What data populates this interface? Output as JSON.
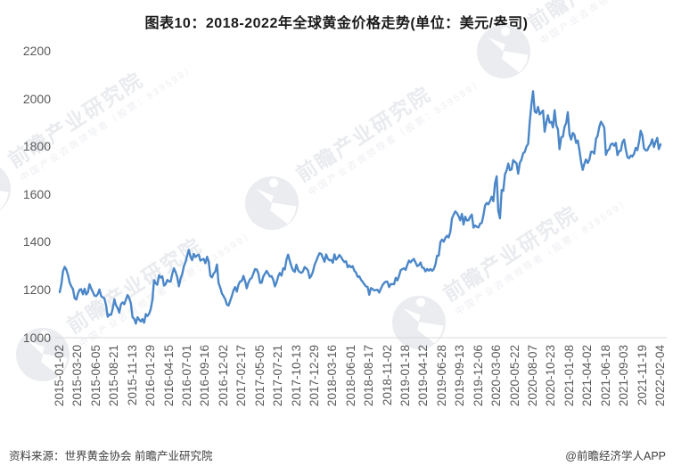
{
  "title": "图表10：2018-2022年全球黄金价格走势(单位：美元/盎司)",
  "footer": {
    "source": "资料来源：世界黄金协会 前瞻产业研究院",
    "credit": "@前瞻经济学人APP"
  },
  "watermark": {
    "main": "前瞻产业研究院",
    "sub": "中国产业咨询领导者（股票：839599）"
  },
  "colors": {
    "line": "#4b87c8",
    "axis_label": "#595959",
    "axis_line": "#d9d9d9",
    "title": "#1a1a1a",
    "footer_text": "#404040",
    "watermark": "#eaecef"
  },
  "chart_data": {
    "type": "line",
    "title": "图表10：2018-2022年全球黄金价格走势(单位：美元/盎司)",
    "series_name": "全球黄金价格（美元/盎司）",
    "unit": "美元/盎司",
    "grid": false,
    "legend": false,
    "ylim": [
      1000,
      2200
    ],
    "y_ticks": [
      1000,
      1200,
      1400,
      1600,
      1800,
      2000,
      2200
    ],
    "x_tick_every": 11,
    "x_tick_labels": [
      "2015-01-02",
      "2015-03-20",
      "2015-06-05",
      "2015-08-21",
      "2015-11-13",
      "2016-01-29",
      "2016-04-15",
      "2016-07-01",
      "2016-09-16",
      "2016-12-02",
      "2017-02-17",
      "2017-05-05",
      "2017-07-21",
      "2017-10-13",
      "2017-12-29",
      "2018-03-16",
      "2018-06-01",
      "2018-08-17",
      "2018-11-02",
      "2019-01-18",
      "2019-04-12",
      "2019-06-28",
      "2019-09-13",
      "2019-12-06",
      "2020-03-06",
      "2020-05-22",
      "2020-08-07",
      "2020-10-23",
      "2021-01-08",
      "2021-04-02",
      "2021-06-18",
      "2021-09-03",
      "2021-11-19",
      "2022-02-04"
    ],
    "values": [
      1189,
      1223,
      1277,
      1295,
      1283,
      1260,
      1229,
      1213,
      1201,
      1164,
      1158,
      1182,
      1199,
      1201,
      1180,
      1203,
      1179,
      1188,
      1222,
      1204,
      1190,
      1174,
      1172,
      1181,
      1200,
      1173,
      1167,
      1163,
      1134,
      1086,
      1095,
      1094,
      1118,
      1159,
      1134,
      1122,
      1103,
      1139,
      1146,
      1138,
      1158,
      1177,
      1164,
      1142,
      1084,
      1077,
      1057,
      1084,
      1074,
      1066,
      1076,
      1061,
      1097,
      1089,
      1098,
      1118,
      1157,
      1239,
      1226,
      1220,
      1259,
      1250,
      1255,
      1216,
      1222,
      1240,
      1234,
      1233,
      1266,
      1289,
      1273,
      1252,
      1213,
      1244,
      1264,
      1298,
      1315,
      1341,
      1366,
      1337,
      1323,
      1349,
      1336,
      1343,
      1346,
      1321,
      1325,
      1328,
      1310,
      1337,
      1317,
      1257,
      1251,
      1267,
      1275,
      1305,
      1227,
      1208,
      1183,
      1172,
      1159,
      1137,
      1133,
      1152,
      1173,
      1197,
      1210,
      1191,
      1220,
      1234,
      1235,
      1257,
      1235,
      1205,
      1229,
      1243,
      1249,
      1266,
      1285,
      1284,
      1268,
      1228,
      1228,
      1255,
      1266,
      1278,
      1266,
      1254,
      1256,
      1241,
      1213,
      1229,
      1255,
      1269,
      1258,
      1289,
      1284,
      1325,
      1346,
      1320,
      1297,
      1280,
      1274,
      1304,
      1281,
      1273,
      1270,
      1276,
      1294,
      1288,
      1280,
      1248,
      1257,
      1275,
      1303,
      1320,
      1338,
      1352,
      1349,
      1333,
      1316,
      1347,
      1329,
      1322,
      1324,
      1312,
      1347,
      1325,
      1333,
      1345,
      1336,
      1324,
      1315,
      1318,
      1293,
      1301,
      1293,
      1298,
      1279,
      1271,
      1253,
      1255,
      1241,
      1232,
      1223,
      1213,
      1211,
      1178,
      1206,
      1202,
      1196,
      1198,
      1199,
      1187,
      1203,
      1218,
      1227,
      1233,
      1233,
      1210,
      1222,
      1223,
      1222,
      1249,
      1238,
      1256,
      1281,
      1285,
      1289,
      1282,
      1303,
      1321,
      1314,
      1322,
      1328,
      1313,
      1298,
      1302,
      1313,
      1292,
      1290,
      1276,
      1286,
      1279,
      1286,
      1278,
      1285,
      1305,
      1341,
      1342,
      1399,
      1409,
      1400,
      1416,
      1425,
      1418,
      1441,
      1497,
      1514,
      1527,
      1520,
      1507,
      1490,
      1517,
      1472,
      1505,
      1489,
      1490,
      1505,
      1514,
      1459,
      1468,
      1463,
      1460,
      1476,
      1479,
      1511,
      1552,
      1562,
      1557,
      1571,
      1589,
      1570,
      1644,
      1674,
      1529,
      1498,
      1617,
      1613,
      1683,
      1698,
      1727,
      1700,
      1703,
      1742,
      1735,
      1728,
      1685,
      1731,
      1744,
      1771,
      1776,
      1799,
      1810,
      1902,
      1976,
      2031,
      1945,
      1940,
      1965,
      1934,
      1941,
      1950,
      1861,
      1900,
      1930,
      1899,
      1902,
      1879,
      1951,
      1889,
      1871,
      1788,
      1838,
      1840,
      1881,
      1898,
      1943,
      1850,
      1828,
      1856,
      1848,
      1814,
      1824,
      1784,
      1734,
      1701,
      1727,
      1745,
      1730,
      1744,
      1777,
      1777,
      1769,
      1831,
      1844,
      1881,
      1903,
      1892,
      1878,
      1764,
      1782,
      1787,
      1808,
      1812,
      1802,
      1814,
      1763,
      1780,
      1781,
      1817,
      1828,
      1788,
      1754,
      1750,
      1761,
      1757,
      1768,
      1793,
      1784,
      1818,
      1865,
      1846,
      1792,
      1783,
      1783,
      1798,
      1809,
      1829,
      1797,
      1817,
      1835,
      1788,
      1808
    ]
  }
}
